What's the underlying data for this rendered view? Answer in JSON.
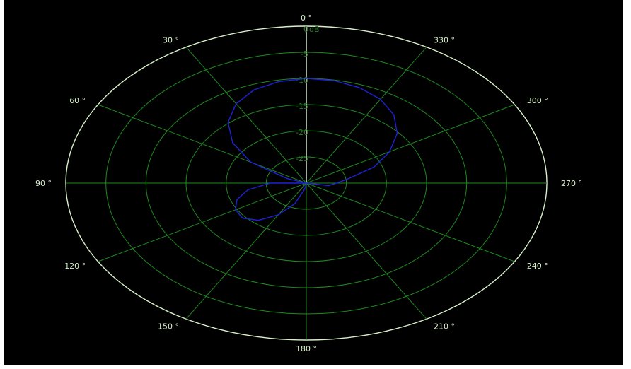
{
  "chart_data": {
    "type": "polar",
    "title": "",
    "radial_unit": "dB",
    "radial_range": [
      -30,
      0
    ],
    "radial_ticks": [
      0,
      -5,
      -10,
      -15,
      -20,
      -25
    ],
    "radial_tick_labels": [
      "0",
      "-5",
      "-10",
      "-15",
      "-20",
      "-25"
    ],
    "angle_ticks_deg": [
      0,
      30,
      60,
      90,
      120,
      150,
      180,
      210,
      240,
      270,
      300,
      330
    ],
    "angle_tick_labels": [
      "0 °",
      "30 °",
      "60 °",
      "90 °",
      "120 °",
      "150 °",
      "180 °",
      "210 °",
      "240 °",
      "270 °",
      "300 °",
      "330 °"
    ],
    "angle_direction": "counterclockwise",
    "zero_angle_position": "top",
    "grid": true,
    "colors": {
      "background": "#000000",
      "outer_circle": "#d8f0c8",
      "grid": "#1f8a1f",
      "zero_axis": "#e6f5df",
      "series": "#1e22d8",
      "db_labels": "#2e7d2a"
    },
    "series": [
      {
        "angles_deg": [
          0,
          10,
          20,
          30,
          40,
          50,
          60,
          70,
          80,
          90,
          100,
          110,
          120,
          130,
          140,
          150,
          160,
          170,
          180,
          190,
          200,
          210,
          220,
          230,
          240,
          250,
          260,
          270,
          280,
          290,
          300,
          310,
          320,
          330,
          340,
          350,
          360
        ],
        "db": [
          -10.0,
          -10.3,
          -11.0,
          -12.5,
          -14.8,
          -18.0,
          -22.0,
          -27.5,
          -30.0,
          -25.5,
          -22.6,
          -20.8,
          -19.8,
          -19.6,
          -20.7,
          -23.0,
          -25.8,
          -28.8,
          -30.0,
          -30.0,
          -30.0,
          -30.0,
          -30.0,
          -30.0,
          -30.0,
          -30.0,
          -27.2,
          -26.2,
          -24.5,
          -21.0,
          -18.0,
          -15.2,
          -13.0,
          -11.5,
          -10.6,
          -10.1,
          -10.0
        ]
      }
    ]
  },
  "labels": {
    "db_unit": "dB"
  }
}
